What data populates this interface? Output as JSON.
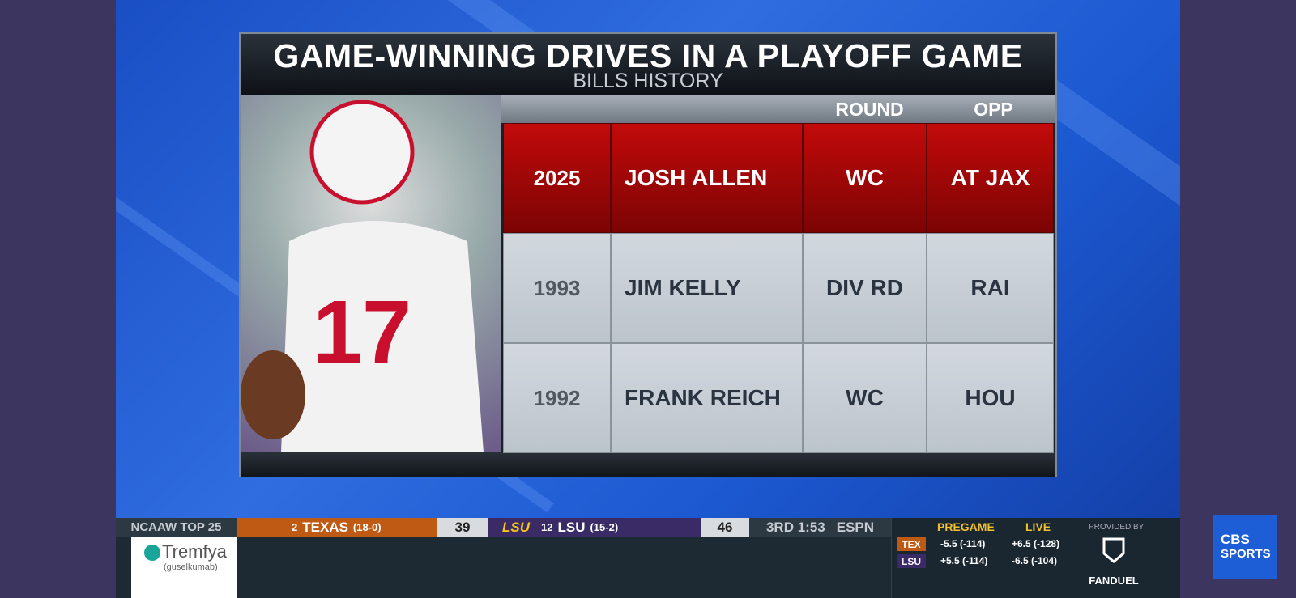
{
  "header": {
    "title": "GAME-WINNING DRIVES IN A PLAYOFF GAME",
    "subtitle": "BILLS HISTORY"
  },
  "table": {
    "columns": [
      "ROUND",
      "OPP"
    ],
    "rows": [
      [
        "2025",
        "JOSH ALLEN",
        "WC",
        "AT JAX"
      ],
      [
        "1993",
        "JIM KELLY",
        "DIV RD",
        "RAI"
      ],
      [
        "1992",
        "FRANK REICH",
        "WC",
        "HOU"
      ]
    ]
  },
  "ticker": {
    "league": "NCAAW TOP 25",
    "home": {
      "rank": "2",
      "name": "TEXAS",
      "record": "(18-0)",
      "score": "39"
    },
    "away": {
      "logo": "LSU",
      "rank": "12",
      "name": "LSU",
      "record": "(15-2)",
      "score": "46"
    },
    "clock": "3RD 1:53",
    "network": "ESPN"
  },
  "odds": {
    "pregame": "PREGAME",
    "live": "LIVE",
    "provided_by": "PROVIDED BY",
    "rows": [
      {
        "team": "TEX",
        "pregame": "-5.5 (-114)",
        "live": "+6.5 (-128)"
      },
      {
        "team": "LSU",
        "pregame": "+5.5 (-114)",
        "live": "-6.5 (-104)"
      }
    ],
    "sponsor": "FANDUEL"
  },
  "ad": {
    "brand": "Tremfya",
    "generic": "(guselkumab)"
  },
  "network_logo": {
    "line1": "CBS",
    "line2": "SPORTS"
  }
}
